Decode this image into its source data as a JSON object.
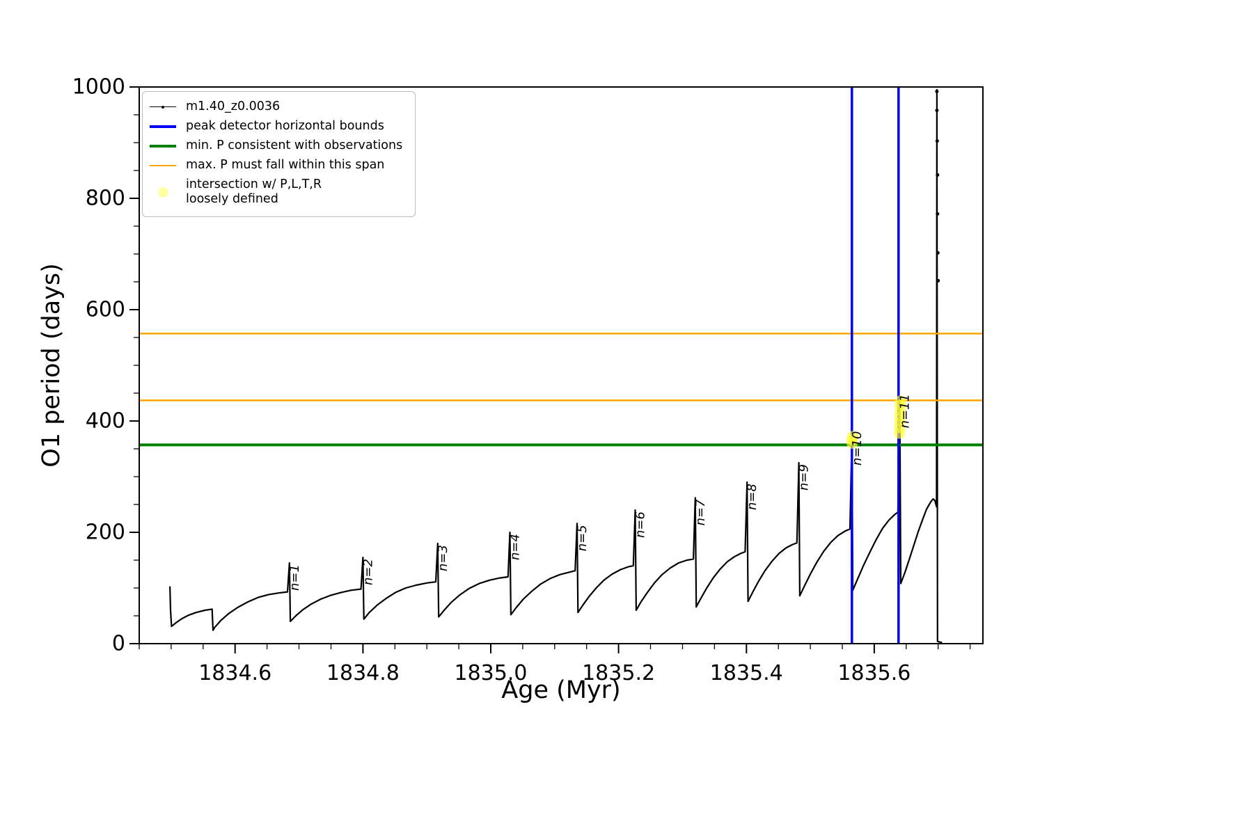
{
  "axes": {
    "xlabel": "Age (Myr)",
    "ylabel": "O1 period (days)"
  },
  "legend": {
    "entries": [
      {
        "label": "m1.40_z0.0036",
        "sample": {
          "kind": "line-marker",
          "color": "#000000",
          "lw": 1.5
        }
      },
      {
        "label": "peak detector horizontal bounds",
        "sample": {
          "kind": "line",
          "color": "#0000FF",
          "lw": 4
        }
      },
      {
        "label": "min. P consistent with observations",
        "sample": {
          "kind": "line",
          "color": "#008000",
          "lw": 4
        }
      },
      {
        "label": "max. P must fall within this span",
        "sample": {
          "kind": "line",
          "color": "#FFA500",
          "lw": 2.5
        }
      },
      {
        "label": "intersection w/ P,L,T,R\nloosely defined",
        "sample": {
          "kind": "marker",
          "color": "#FFFF66",
          "alpha": 0.6
        }
      }
    ]
  },
  "chart_data": {
    "type": "line",
    "title": "",
    "xlabel": "Age (Myr)",
    "ylabel": "O1 period (days)",
    "xlim": [
      1834.45,
      1835.77
    ],
    "ylim": [
      0,
      1000
    ],
    "grid": false,
    "legend_position": "upper left",
    "x_ticks": [
      1834.6,
      1834.8,
      1835.0,
      1835.2,
      1835.4,
      1835.6
    ],
    "x_tick_labels": [
      "1834.6",
      "1834.8",
      "1835.0",
      "1835.2",
      "1835.4",
      "1835.6"
    ],
    "x_minor_step": 0.05,
    "y_ticks": [
      0,
      200,
      400,
      600,
      800,
      1000
    ],
    "y_tick_labels": [
      "0",
      "200",
      "400",
      "600",
      "800",
      "1000"
    ],
    "y_minor_step": 50,
    "series": [
      {
        "name": "m1.40_z0.0036",
        "type": "line",
        "color": "#000000",
        "lw": 2.2,
        "points": [
          [
            1834.498,
            103
          ],
          [
            1834.499,
            60
          ],
          [
            1834.5005,
            31
          ],
          [
            1834.508,
            38
          ],
          [
            1834.517,
            45
          ],
          [
            1834.527,
            51
          ],
          [
            1834.539,
            56
          ],
          [
            1834.553,
            60
          ],
          [
            1834.564,
            62
          ],
          [
            1834.5655,
            24
          ],
          [
            1834.568,
            29
          ],
          [
            1834.578,
            42
          ],
          [
            1834.59,
            54
          ],
          [
            1834.604,
            65
          ],
          [
            1834.62,
            75
          ],
          [
            1834.636,
            83
          ],
          [
            1834.652,
            88
          ],
          [
            1834.668,
            91
          ],
          [
            1834.682,
            93
          ],
          [
            1834.685,
            145
          ],
          [
            1834.6865,
            40
          ],
          [
            1834.695,
            50
          ],
          [
            1834.706,
            61
          ],
          [
            1834.719,
            71
          ],
          [
            1834.734,
            80
          ],
          [
            1834.75,
            87
          ],
          [
            1834.766,
            92
          ],
          [
            1834.782,
            96
          ],
          [
            1834.797,
            98
          ],
          [
            1834.8,
            155
          ],
          [
            1834.8015,
            44
          ],
          [
            1834.81,
            56
          ],
          [
            1834.822,
            69
          ],
          [
            1834.836,
            81
          ],
          [
            1834.851,
            92
          ],
          [
            1834.867,
            100
          ],
          [
            1834.883,
            105
          ],
          [
            1834.9,
            109
          ],
          [
            1834.914,
            111
          ],
          [
            1834.917,
            180
          ],
          [
            1834.9185,
            48
          ],
          [
            1834.927,
            60
          ],
          [
            1834.938,
            74
          ],
          [
            1834.951,
            87
          ],
          [
            1834.966,
            99
          ],
          [
            1834.982,
            108
          ],
          [
            1834.998,
            114
          ],
          [
            1835.014,
            118
          ],
          [
            1835.027,
            120
          ],
          [
            1835.03,
            200
          ],
          [
            1835.0315,
            52
          ],
          [
            1835.04,
            65
          ],
          [
            1835.051,
            80
          ],
          [
            1835.064,
            94
          ],
          [
            1835.078,
            107
          ],
          [
            1835.093,
            117
          ],
          [
            1835.108,
            124
          ],
          [
            1835.122,
            128
          ],
          [
            1835.132,
            131
          ],
          [
            1835.135,
            216
          ],
          [
            1835.1365,
            56
          ],
          [
            1835.144,
            69
          ],
          [
            1835.154,
            85
          ],
          [
            1835.165,
            100
          ],
          [
            1835.177,
            114
          ],
          [
            1835.19,
            125
          ],
          [
            1835.203,
            133
          ],
          [
            1835.215,
            138
          ],
          [
            1835.223,
            140
          ],
          [
            1835.226,
            240
          ],
          [
            1835.2275,
            60
          ],
          [
            1835.235,
            75
          ],
          [
            1835.245,
            92
          ],
          [
            1835.256,
            109
          ],
          [
            1835.268,
            124
          ],
          [
            1835.281,
            136
          ],
          [
            1835.294,
            145
          ],
          [
            1835.307,
            150
          ],
          [
            1835.317,
            152
          ],
          [
            1835.32,
            262
          ],
          [
            1835.3215,
            66
          ],
          [
            1835.329,
            82
          ],
          [
            1835.338,
            100
          ],
          [
            1835.348,
            118
          ],
          [
            1835.359,
            134
          ],
          [
            1835.37,
            147
          ],
          [
            1835.381,
            156
          ],
          [
            1835.391,
            162
          ],
          [
            1835.398,
            165
          ],
          [
            1835.401,
            290
          ],
          [
            1835.4025,
            76
          ],
          [
            1835.41,
            93
          ],
          [
            1835.419,
            112
          ],
          [
            1835.429,
            131
          ],
          [
            1835.44,
            148
          ],
          [
            1835.451,
            162
          ],
          [
            1835.462,
            172
          ],
          [
            1835.472,
            178
          ],
          [
            1835.479,
            181
          ],
          [
            1835.482,
            325
          ],
          [
            1835.4835,
            86
          ],
          [
            1835.491,
            104
          ],
          [
            1835.5,
            125
          ],
          [
            1835.51,
            146
          ],
          [
            1835.521,
            166
          ],
          [
            1835.532,
            182
          ],
          [
            1835.543,
            194
          ],
          [
            1835.554,
            202
          ],
          [
            1835.562,
            206
          ],
          [
            1835.565,
            370
          ],
          [
            1835.5665,
            96
          ],
          [
            1835.574,
            116
          ],
          [
            1835.583,
            140
          ],
          [
            1835.593,
            164
          ],
          [
            1835.603,
            187
          ],
          [
            1835.613,
            207
          ],
          [
            1835.623,
            222
          ],
          [
            1835.632,
            232
          ],
          [
            1835.637,
            236
          ],
          [
            1835.64,
            437
          ],
          [
            1835.6415,
            108
          ],
          [
            1835.648,
            128
          ],
          [
            1835.655,
            152
          ],
          [
            1835.662,
            177
          ],
          [
            1835.669,
            202
          ],
          [
            1835.676,
            224
          ],
          [
            1835.682,
            242
          ],
          [
            1835.688,
            254
          ],
          [
            1835.692,
            260
          ],
          [
            1835.695,
            257
          ],
          [
            1835.6975,
            246
          ],
          [
            1835.698,
            995
          ],
          [
            1835.699,
            4
          ],
          [
            1835.706,
            2
          ]
        ]
      },
      {
        "name": "min. P consistent with observations",
        "type": "hline",
        "color": "#008000",
        "lw": 4,
        "y": [
          357
        ]
      },
      {
        "name": "max. P must fall within this span",
        "type": "hline",
        "color": "#FFA500",
        "lw": 2.5,
        "y": [
          437,
          557
        ]
      },
      {
        "name": "peak detector horizontal bounds",
        "type": "vline",
        "color": "#0000FF",
        "lw": 3.5,
        "x": [
          1835.565,
          1835.638
        ]
      },
      {
        "name": "intersection w/ P,L,T,R loosely defined",
        "type": "scatter",
        "color": "#FFFF33",
        "alpha": 0.65,
        "size": 8,
        "points": [
          [
            1835.5655,
            360
          ],
          [
            1835.5655,
            366
          ],
          [
            1835.566,
            372
          ],
          [
            1835.6395,
            378
          ],
          [
            1835.6395,
            388
          ],
          [
            1835.64,
            398
          ],
          [
            1835.64,
            408
          ],
          [
            1835.6405,
            418
          ],
          [
            1835.6405,
            428
          ],
          [
            1835.641,
            436
          ]
        ]
      },
      {
        "name": "terminal high-period dots",
        "type": "scatter",
        "color": "#000000",
        "alpha": 1,
        "size": 2.5,
        "points": [
          [
            1835.698,
            992
          ],
          [
            1835.698,
            958
          ],
          [
            1835.6985,
            903
          ],
          [
            1835.699,
            842
          ],
          [
            1835.699,
            772
          ],
          [
            1835.6995,
            702
          ],
          [
            1835.7,
            652
          ]
        ]
      }
    ],
    "peak_labels": [
      {
        "text": "n=1",
        "x": 1834.685,
        "y": 145
      },
      {
        "text": "n=2",
        "x": 1834.8,
        "y": 155
      },
      {
        "text": "n=3",
        "x": 1834.917,
        "y": 180
      },
      {
        "text": "n=4",
        "x": 1835.03,
        "y": 200
      },
      {
        "text": "n=5",
        "x": 1835.135,
        "y": 216
      },
      {
        "text": "n=6",
        "x": 1835.226,
        "y": 240
      },
      {
        "text": "n=7",
        "x": 1835.32,
        "y": 262
      },
      {
        "text": "n=8",
        "x": 1835.401,
        "y": 290
      },
      {
        "text": "n=9",
        "x": 1835.482,
        "y": 325
      },
      {
        "text": "n=10",
        "x": 1835.565,
        "y": 370
      },
      {
        "text": "n=11",
        "x": 1835.64,
        "y": 437
      }
    ]
  }
}
